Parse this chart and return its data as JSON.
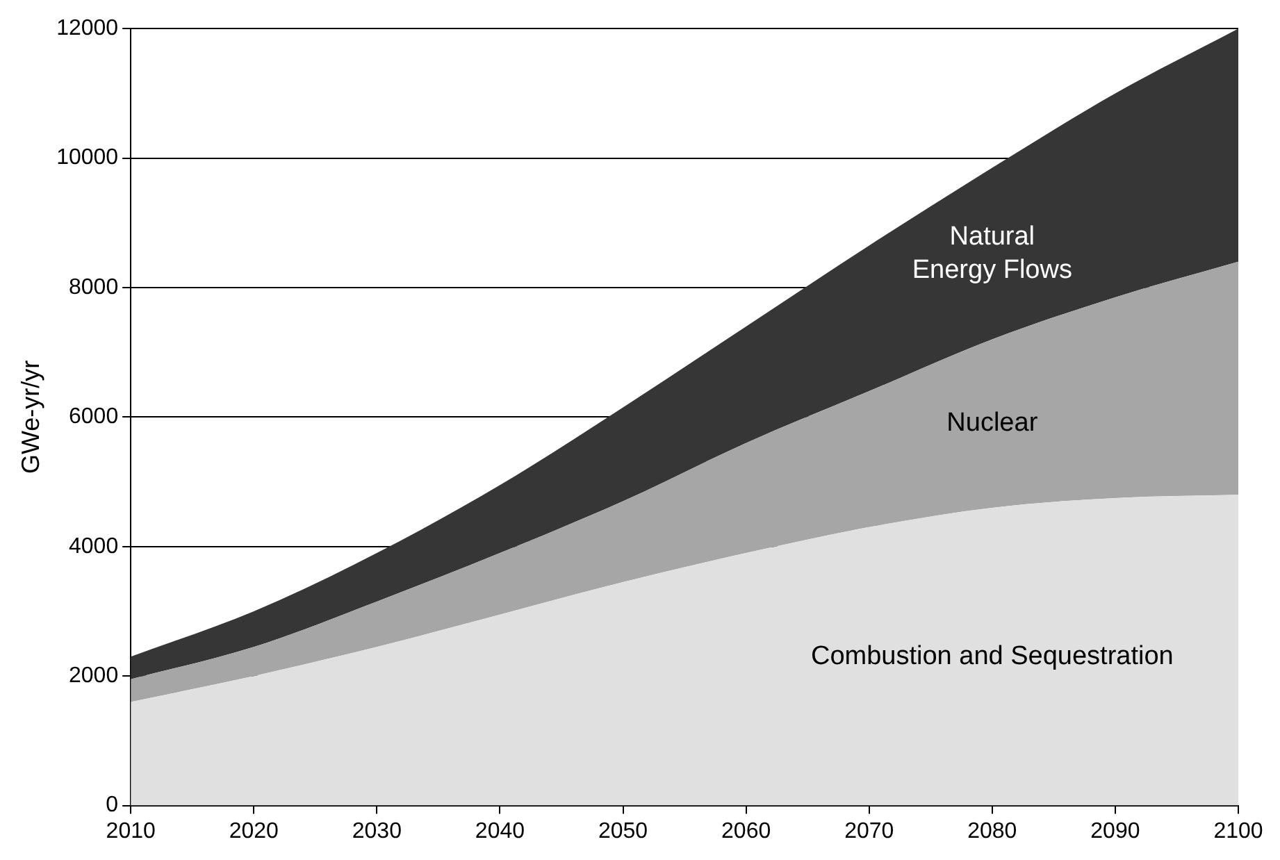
{
  "chart_data": {
    "type": "area",
    "stacked": true,
    "ylabel": "GWe-yr/yr",
    "x": [
      2010,
      2020,
      2030,
      2040,
      2050,
      2060,
      2070,
      2080,
      2090,
      2100
    ],
    "series": [
      {
        "name": "Combustion and Sequestration",
        "color": "#e0e0e0",
        "values": [
          1600,
          2000,
          2450,
          2950,
          3450,
          3900,
          4300,
          4600,
          4750,
          4800
        ]
      },
      {
        "name": "Nuclear",
        "color": "#a6a6a6",
        "values": [
          350,
          450,
          700,
          950,
          1250,
          1700,
          2100,
          2600,
          3100,
          3600
        ]
      },
      {
        "name": "Natural Energy Flows",
        "color": "#363636",
        "values": [
          350,
          550,
          750,
          1050,
          1450,
          1800,
          2250,
          2650,
          3150,
          3600
        ]
      }
    ],
    "xlim": [
      2010,
      2100
    ],
    "xticks": [
      2010,
      2020,
      2030,
      2040,
      2050,
      2060,
      2070,
      2080,
      2090,
      2100
    ],
    "ylim": [
      0,
      12000
    ],
    "yticks": [
      0,
      2000,
      4000,
      6000,
      8000,
      10000,
      12000
    ],
    "grid": "y",
    "legend": false
  }
}
